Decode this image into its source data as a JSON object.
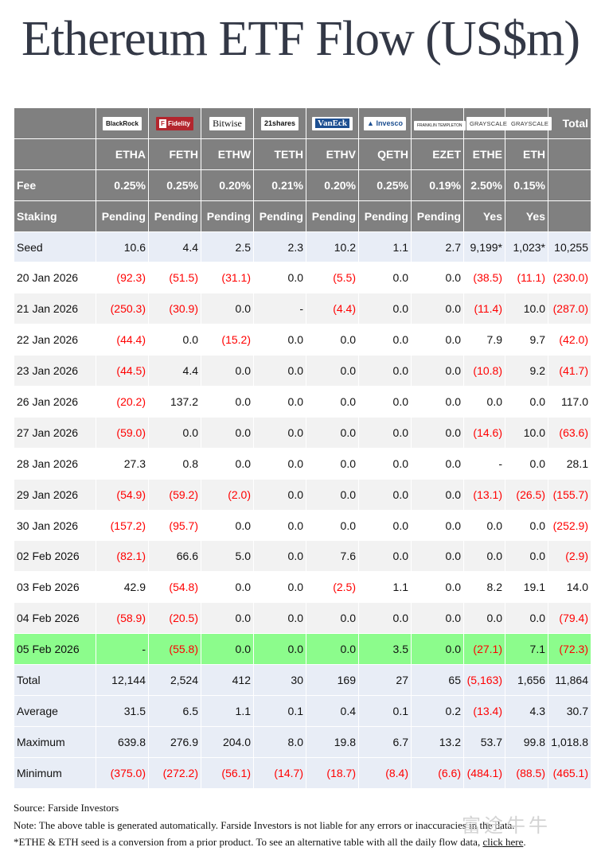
{
  "title": "Ethereum ETF Flow (US$m)",
  "providers": [
    {
      "name": "BlackRock",
      "icon": "blackrock-logo"
    },
    {
      "name": "Fidelity",
      "icon": "fidelity-logo"
    },
    {
      "name": "Bitwise",
      "icon": "bitwise-logo"
    },
    {
      "name": "21shares",
      "icon": "21shares-logo"
    },
    {
      "name": "VanEck",
      "icon": "vaneck-logo"
    },
    {
      "name": "Invesco",
      "icon": "invesco-logo"
    },
    {
      "name": "FRANKLIN TEMPLETON",
      "icon": "franklin-templeton-logo"
    },
    {
      "name": "GRAYSCALE",
      "icon": "grayscale-logo"
    },
    {
      "name": "GRAYSCALE",
      "icon": "grayscale-logo"
    }
  ],
  "total_label": "Total",
  "tickers": [
    "ETHA",
    "FETH",
    "ETHW",
    "TETH",
    "ETHV",
    "QETH",
    "EZET",
    "ETHE",
    "ETH"
  ],
  "fee": {
    "label": "Fee",
    "values": [
      "0.25%",
      "0.25%",
      "0.20%",
      "0.21%",
      "0.20%",
      "0.25%",
      "0.19%",
      "2.50%",
      "0.15%"
    ]
  },
  "staking": {
    "label": "Staking",
    "values": [
      "Pending",
      "Pending",
      "Pending",
      "Pending",
      "Pending",
      "Pending",
      "Pending",
      "Yes",
      "Yes"
    ]
  },
  "rows": [
    {
      "label": "Seed",
      "values": [
        "10.6",
        "4.4",
        "2.5",
        "2.3",
        "10.2",
        "1.1",
        "2.7",
        "9,199*",
        "1,023*",
        "10,255"
      ]
    },
    {
      "label": "20 Jan 2026",
      "values": [
        "(92.3)",
        "(51.5)",
        "(31.1)",
        "0.0",
        "(5.5)",
        "0.0",
        "0.0",
        "(38.5)",
        "(11.1)",
        "(230.0)"
      ]
    },
    {
      "label": "21 Jan 2026",
      "values": [
        "(250.3)",
        "(30.9)",
        "0.0",
        "-",
        "(4.4)",
        "0.0",
        "0.0",
        "(11.4)",
        "10.0",
        "(287.0)"
      ]
    },
    {
      "label": "22 Jan 2026",
      "values": [
        "(44.4)",
        "0.0",
        "(15.2)",
        "0.0",
        "0.0",
        "0.0",
        "0.0",
        "7.9",
        "9.7",
        "(42.0)"
      ]
    },
    {
      "label": "23 Jan 2026",
      "values": [
        "(44.5)",
        "4.4",
        "0.0",
        "0.0",
        "0.0",
        "0.0",
        "0.0",
        "(10.8)",
        "9.2",
        "(41.7)"
      ]
    },
    {
      "label": "26 Jan 2026",
      "values": [
        "(20.2)",
        "137.2",
        "0.0",
        "0.0",
        "0.0",
        "0.0",
        "0.0",
        "0.0",
        "0.0",
        "117.0"
      ]
    },
    {
      "label": "27 Jan 2026",
      "values": [
        "(59.0)",
        "0.0",
        "0.0",
        "0.0",
        "0.0",
        "0.0",
        "0.0",
        "(14.6)",
        "10.0",
        "(63.6)"
      ]
    },
    {
      "label": "28 Jan 2026",
      "values": [
        "27.3",
        "0.8",
        "0.0",
        "0.0",
        "0.0",
        "0.0",
        "0.0",
        "-",
        "0.0",
        "28.1"
      ]
    },
    {
      "label": "29 Jan 2026",
      "values": [
        "(54.9)",
        "(59.2)",
        "(2.0)",
        "0.0",
        "0.0",
        "0.0",
        "0.0",
        "(13.1)",
        "(26.5)",
        "(155.7)"
      ]
    },
    {
      "label": "30 Jan 2026",
      "values": [
        "(157.2)",
        "(95.7)",
        "0.0",
        "0.0",
        "0.0",
        "0.0",
        "0.0",
        "0.0",
        "0.0",
        "(252.9)"
      ]
    },
    {
      "label": "02 Feb 2026",
      "values": [
        "(82.1)",
        "66.6",
        "5.0",
        "0.0",
        "7.6",
        "0.0",
        "0.0",
        "0.0",
        "0.0",
        "(2.9)"
      ]
    },
    {
      "label": "03 Feb 2026",
      "values": [
        "42.9",
        "(54.8)",
        "0.0",
        "0.0",
        "(2.5)",
        "1.1",
        "0.0",
        "8.2",
        "19.1",
        "14.0"
      ]
    },
    {
      "label": "04 Feb 2026",
      "values": [
        "(58.9)",
        "(20.5)",
        "0.0",
        "0.0",
        "0.0",
        "0.0",
        "0.0",
        "0.0",
        "0.0",
        "(79.4)"
      ]
    },
    {
      "label": "05 Feb 2026",
      "values": [
        "-",
        "(55.8)",
        "0.0",
        "0.0",
        "0.0",
        "3.5",
        "0.0",
        "(27.1)",
        "7.1",
        "(72.3)"
      ],
      "highlight": true
    },
    {
      "label": "Total",
      "values": [
        "12,144",
        "2,524",
        "412",
        "30",
        "169",
        "27",
        "65",
        "(5,163)",
        "1,656",
        "11,864"
      ]
    },
    {
      "label": "Average",
      "values": [
        "31.5",
        "6.5",
        "1.1",
        "0.1",
        "0.4",
        "0.1",
        "0.2",
        "(13.4)",
        "4.3",
        "30.7"
      ]
    },
    {
      "label": "Maximum",
      "values": [
        "639.8",
        "276.9",
        "204.0",
        "8.0",
        "19.8",
        "6.7",
        "13.2",
        "53.7",
        "99.8",
        "1,018.8"
      ]
    },
    {
      "label": "Minimum",
      "values": [
        "(375.0)",
        "(272.2)",
        "(56.1)",
        "(14.7)",
        "(18.7)",
        "(8.4)",
        "(6.6)",
        "(484.1)",
        "(88.5)",
        "(465.1)"
      ]
    }
  ],
  "footer": {
    "source": "Source: Farside Investors",
    "note": "Note: The above table is generated automatically. Farside Investors is not liable for any errors or inaccuracies in the data.",
    "seed_note": "*ETHE & ETH seed is a conversion from a prior product.  To see an alternative table with all the daily flow data,",
    "link_text": "click here",
    "link_suffix": "."
  },
  "watermark": "富途牛牛",
  "colors": {
    "header_bg": "#808080",
    "negative": "#ff0000",
    "highlight": "#8cfc8c",
    "stats_bg": "#e8edf6",
    "alt_row": "#f2f2f2"
  }
}
